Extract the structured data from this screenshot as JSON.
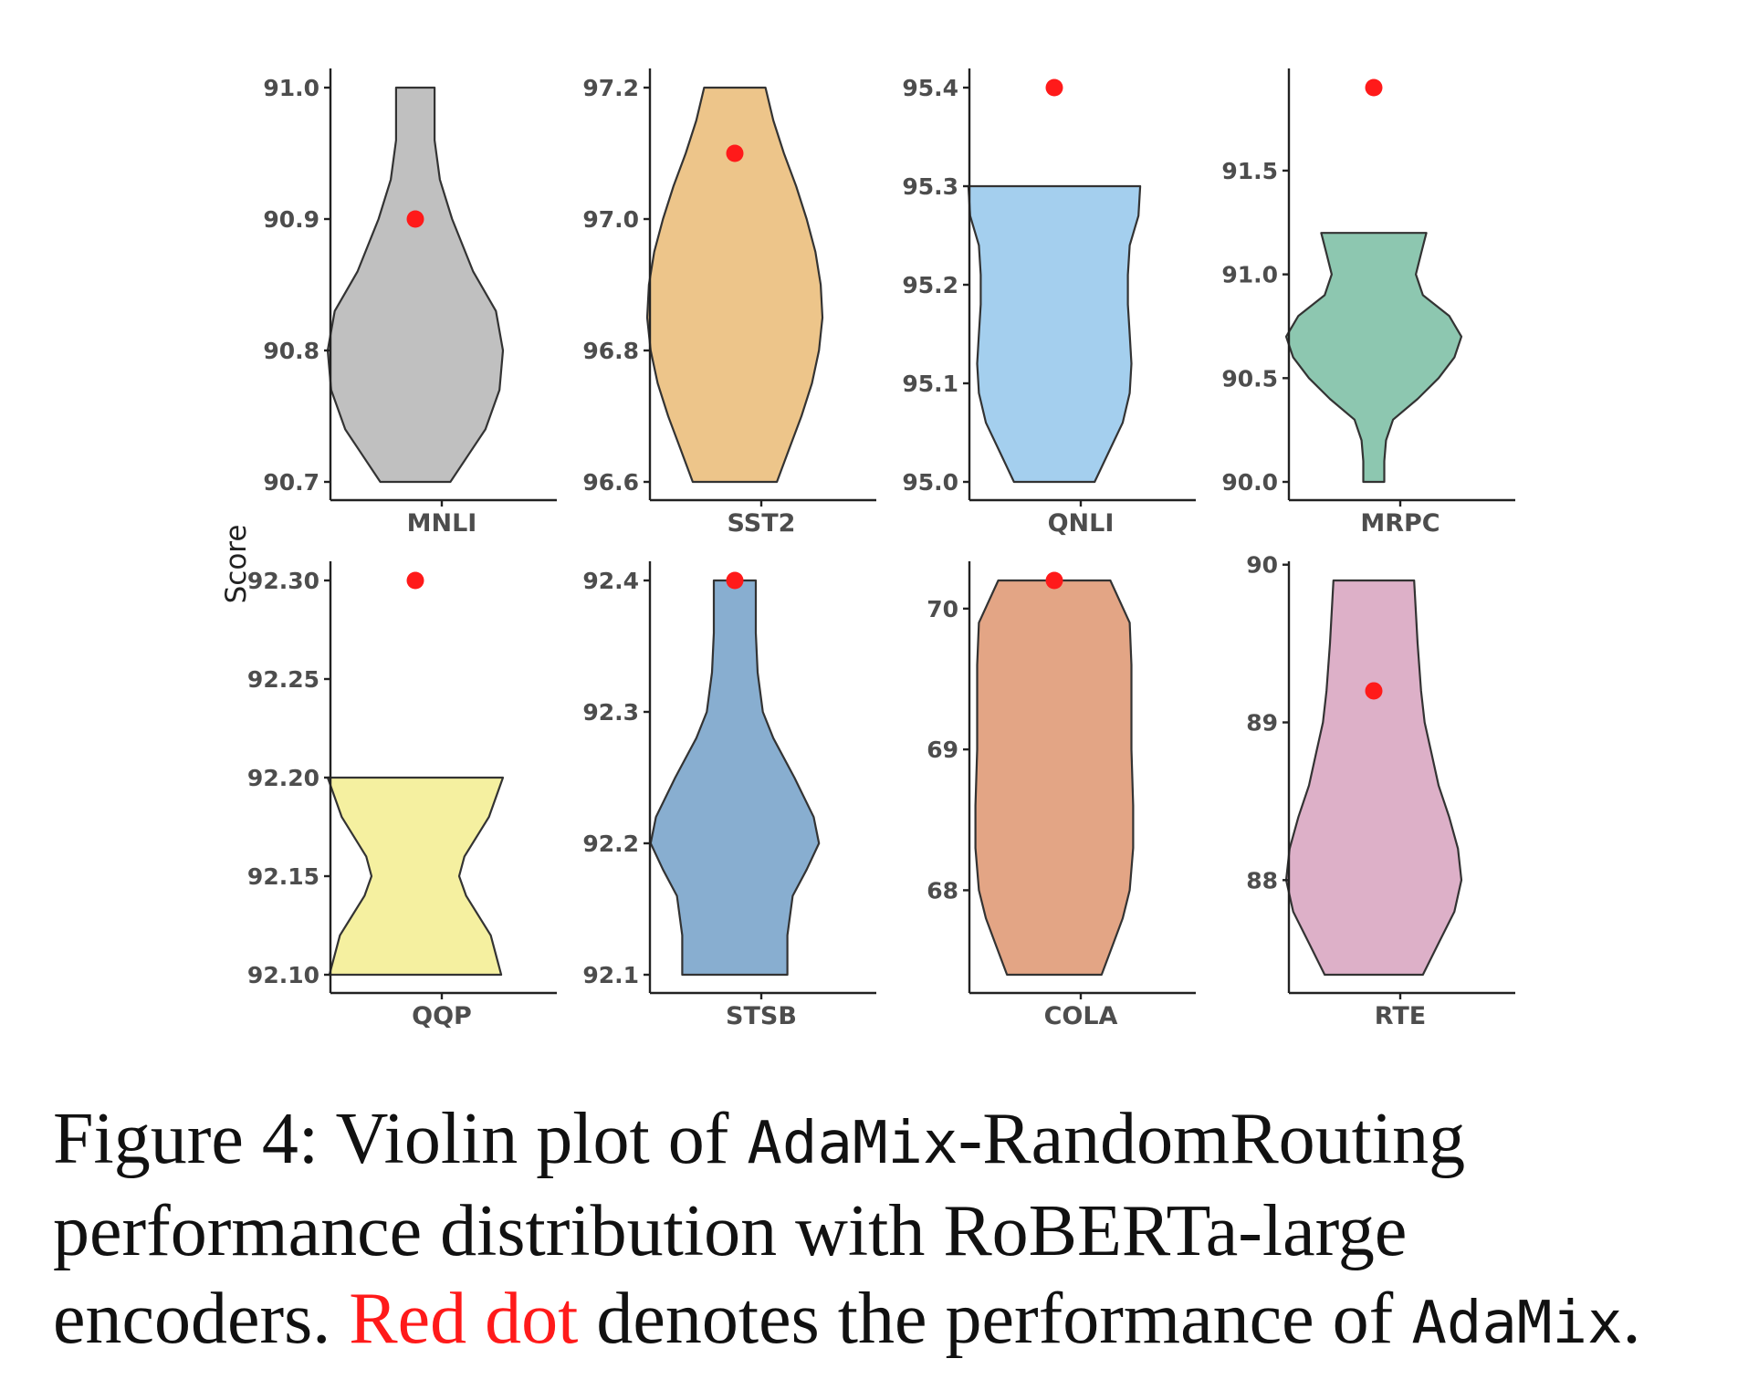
{
  "chart_data": {
    "type": "violin",
    "ylabel": "Score",
    "point_color": "#ff1a1a",
    "panels": [
      {
        "category": "MNLI",
        "color": "#c0c0c0",
        "ylim": [
          90.7,
          91.0
        ],
        "ticks": [
          "90.7",
          "90.8",
          "90.9",
          "91.0"
        ],
        "range": [
          90.7,
          91.0
        ],
        "adamix": 90.9,
        "density": [
          [
            90.7,
            0.4
          ],
          [
            90.72,
            0.6
          ],
          [
            90.74,
            0.8
          ],
          [
            90.77,
            0.96
          ],
          [
            90.8,
            1.0
          ],
          [
            90.83,
            0.92
          ],
          [
            90.86,
            0.66
          ],
          [
            90.9,
            0.42
          ],
          [
            90.93,
            0.28
          ],
          [
            90.96,
            0.22
          ],
          [
            91.0,
            0.22
          ]
        ]
      },
      {
        "category": "SST2",
        "color": "#edc58a",
        "ylim": [
          96.6,
          97.2
        ],
        "ticks": [
          "96.6",
          "96.8",
          "97.0",
          "97.2"
        ],
        "range": [
          96.6,
          97.2
        ],
        "adamix": 97.1,
        "density": [
          [
            96.6,
            0.48
          ],
          [
            96.65,
            0.62
          ],
          [
            96.7,
            0.76
          ],
          [
            96.75,
            0.88
          ],
          [
            96.8,
            0.96
          ],
          [
            96.85,
            1.0
          ],
          [
            96.9,
            0.98
          ],
          [
            96.95,
            0.92
          ],
          [
            97.0,
            0.82
          ],
          [
            97.05,
            0.7
          ],
          [
            97.1,
            0.56
          ],
          [
            97.15,
            0.44
          ],
          [
            97.2,
            0.35
          ]
        ]
      },
      {
        "category": "QNLI",
        "color": "#a4cfee",
        "ylim": [
          95.0,
          95.4
        ],
        "ticks": [
          "95.0",
          "95.1",
          "95.2",
          "95.3",
          "95.4"
        ],
        "range": [
          95.0,
          95.3
        ],
        "adamix": 95.4,
        "density": [
          [
            95.0,
            0.46
          ],
          [
            95.03,
            0.62
          ],
          [
            95.06,
            0.78
          ],
          [
            95.09,
            0.86
          ],
          [
            95.12,
            0.88
          ],
          [
            95.15,
            0.86
          ],
          [
            95.18,
            0.84
          ],
          [
            95.21,
            0.84
          ],
          [
            95.24,
            0.86
          ],
          [
            95.27,
            0.96
          ],
          [
            95.3,
            0.98
          ]
        ]
      },
      {
        "category": "MRPC",
        "color": "#8dc7b0",
        "ylim": [
          90.0,
          91.9
        ],
        "ticks": [
          "90.0",
          "90.5",
          "91.0",
          "91.5"
        ],
        "range": [
          90.0,
          91.2
        ],
        "adamix": 91.9,
        "density": [
          [
            90.0,
            0.12
          ],
          [
            90.1,
            0.12
          ],
          [
            90.2,
            0.14
          ],
          [
            90.3,
            0.22
          ],
          [
            90.4,
            0.5
          ],
          [
            90.5,
            0.74
          ],
          [
            90.6,
            0.92
          ],
          [
            90.7,
            1.0
          ],
          [
            90.8,
            0.86
          ],
          [
            90.9,
            0.56
          ],
          [
            91.0,
            0.48
          ],
          [
            91.1,
            0.54
          ],
          [
            91.2,
            0.6
          ]
        ]
      },
      {
        "category": "QQP",
        "color": "#f5f0a0",
        "ylim": [
          92.1,
          92.3
        ],
        "ticks": [
          "92.10",
          "92.15",
          "92.20",
          "92.25",
          "92.30"
        ],
        "range": [
          92.1,
          92.2
        ],
        "adamix": 92.3,
        "density": [
          [
            92.1,
            0.98
          ],
          [
            92.12,
            0.86
          ],
          [
            92.14,
            0.58
          ],
          [
            92.15,
            0.5
          ],
          [
            92.16,
            0.56
          ],
          [
            92.18,
            0.84
          ],
          [
            92.2,
            1.0
          ]
        ]
      },
      {
        "category": "STSB",
        "color": "#88aed0",
        "ylim": [
          92.1,
          92.4
        ],
        "ticks": [
          "92.1",
          "92.2",
          "92.3",
          "92.4"
        ],
        "range": [
          92.1,
          92.4
        ],
        "adamix": 92.4,
        "density": [
          [
            92.1,
            0.6
          ],
          [
            92.13,
            0.6
          ],
          [
            92.16,
            0.66
          ],
          [
            92.18,
            0.82
          ],
          [
            92.2,
            0.96
          ],
          [
            92.22,
            0.9
          ],
          [
            92.25,
            0.68
          ],
          [
            92.28,
            0.44
          ],
          [
            92.3,
            0.32
          ],
          [
            92.33,
            0.26
          ],
          [
            92.36,
            0.24
          ],
          [
            92.4,
            0.24
          ]
        ]
      },
      {
        "category": "COLA",
        "color": "#e3a585",
        "ylim": [
          67.4,
          70.2
        ],
        "ticks": [
          "68",
          "69",
          "70"
        ],
        "range": [
          67.4,
          70.2
        ],
        "adamix": 70.2,
        "density": [
          [
            67.4,
            0.54
          ],
          [
            67.6,
            0.66
          ],
          [
            67.8,
            0.78
          ],
          [
            68.0,
            0.86
          ],
          [
            68.3,
            0.9
          ],
          [
            68.6,
            0.9
          ],
          [
            69.0,
            0.88
          ],
          [
            69.3,
            0.88
          ],
          [
            69.6,
            0.88
          ],
          [
            69.9,
            0.86
          ],
          [
            70.2,
            0.64
          ]
        ]
      },
      {
        "category": "RTE",
        "color": "#ddb0c8",
        "ylim": [
          87.4,
          89.9
        ],
        "ticks": [
          "88",
          "89",
          "90"
        ],
        "range": [
          87.4,
          89.9
        ],
        "adamix": 89.2,
        "density": [
          [
            87.4,
            0.56
          ],
          [
            87.6,
            0.74
          ],
          [
            87.8,
            0.92
          ],
          [
            88.0,
            1.0
          ],
          [
            88.2,
            0.96
          ],
          [
            88.4,
            0.86
          ],
          [
            88.6,
            0.74
          ],
          [
            88.8,
            0.66
          ],
          [
            89.0,
            0.58
          ],
          [
            89.2,
            0.54
          ],
          [
            89.5,
            0.5
          ],
          [
            89.9,
            0.46
          ]
        ]
      }
    ]
  },
  "caption": {
    "p1": "Figure 4: Violin plot of ",
    "mono1": "AdaMix",
    "p2": "-RandomRouting performance distribution with RoBERTa-large encoders. ",
    "red": "Red dot",
    "p3": " denotes the performance of ",
    "mono2": "AdaMix",
    "p4": "."
  }
}
